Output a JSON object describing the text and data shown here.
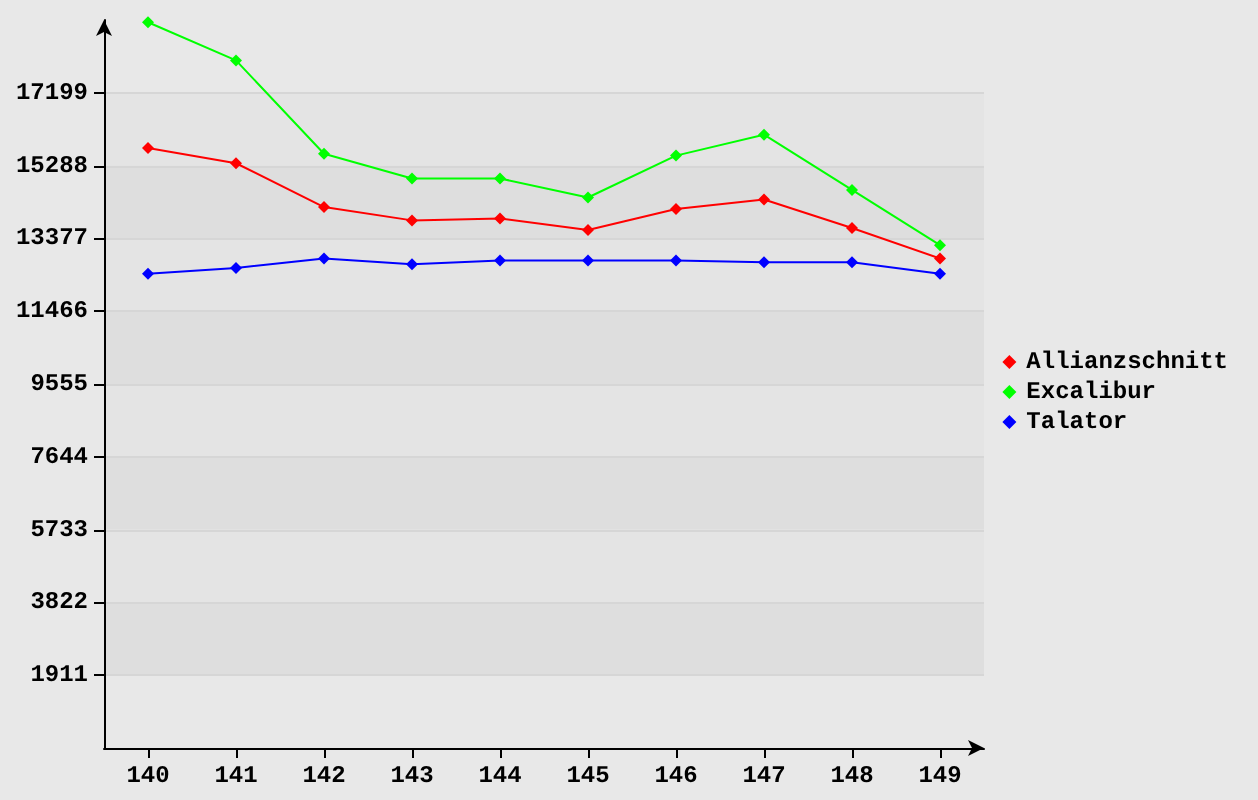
{
  "chart_data": {
    "type": "line",
    "categories": [
      "140",
      "141",
      "142",
      "143",
      "144",
      "145",
      "146",
      "147",
      "148",
      "149"
    ],
    "series": [
      {
        "name": "Allianzschnitt",
        "color": "#ff0000",
        "values": [
          15750,
          15350,
          14200,
          13850,
          13900,
          13600,
          14150,
          14400,
          13650,
          12850
        ]
      },
      {
        "name": "Excalibur",
        "color": "#00ff00",
        "values": [
          19050,
          18050,
          15600,
          14950,
          14950,
          14450,
          15550,
          16100,
          14650,
          13200
        ]
      },
      {
        "name": "Talator",
        "color": "#0000ff",
        "values": [
          12450,
          12600,
          12850,
          12700,
          12800,
          12800,
          12800,
          12750,
          12750,
          12450
        ]
      }
    ],
    "ylim": [
      0,
      19110
    ],
    "yticks": [
      1911,
      3822,
      5733,
      7644,
      9555,
      11466,
      13377,
      15288,
      17199
    ],
    "grid": "y",
    "legend": "right",
    "marker": "diamond",
    "line_style": "solid"
  }
}
